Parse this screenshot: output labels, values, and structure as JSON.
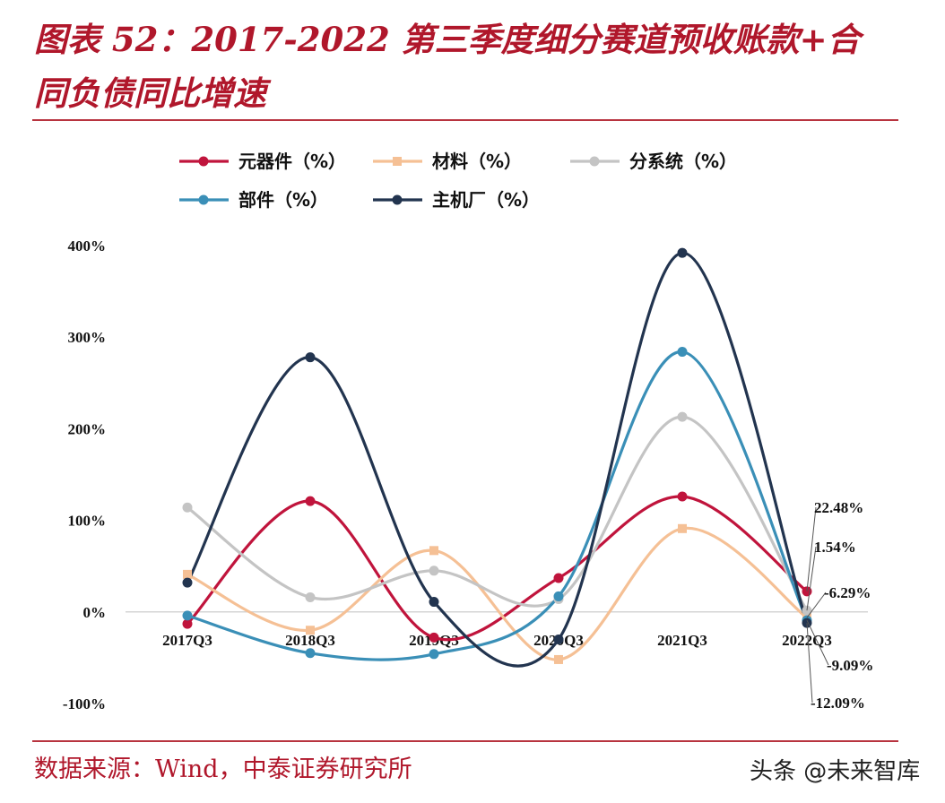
{
  "title_line1": "图表 52：2017-2022 第三季度细分赛道预收账款+合",
  "title_line2": "同负债同比增速",
  "source": "数据来源：Wind，中泰证券研究所",
  "watermark": "头条 @未来智库",
  "chart_data": {
    "type": "line",
    "categories": [
      "2017Q3",
      "2018Q3",
      "2019Q3",
      "2020Q3",
      "2021Q3",
      "2022Q3"
    ],
    "y_ticks": [
      -100,
      0,
      100,
      200,
      300,
      400
    ],
    "y_tick_labels": [
      "-100%",
      "0%",
      "100%",
      "200%",
      "300%",
      "400%"
    ],
    "ylim": [
      -100,
      400
    ],
    "grid": false,
    "legend_position": "top",
    "series": [
      {
        "name": "元器件（%）",
        "color": "#c0143c",
        "marker": "circle",
        "values": [
          -13,
          121,
          -28,
          37,
          126,
          22.48
        ]
      },
      {
        "name": "材料（%）",
        "color": "#f5c095",
        "marker": "square",
        "values": [
          41,
          -20,
          67,
          -52,
          91,
          -6.29
        ]
      },
      {
        "name": "分系统（%）",
        "color": "#c4c4c4",
        "marker": "circle",
        "values": [
          114,
          16,
          45,
          14,
          213,
          1.54
        ]
      },
      {
        "name": "部件（%）",
        "color": "#3a8fb7",
        "marker": "circle",
        "values": [
          -4,
          -45,
          -46,
          17,
          284,
          -9.09
        ]
      },
      {
        "name": "主机厂（%）",
        "color": "#22344f",
        "marker": "circle",
        "values": [
          32,
          278,
          11,
          -30,
          392,
          -12.09
        ]
      }
    ],
    "annotations": [
      "22.48%",
      "1.54%",
      "-6.29%",
      "-9.09%",
      "-12.09%"
    ]
  }
}
